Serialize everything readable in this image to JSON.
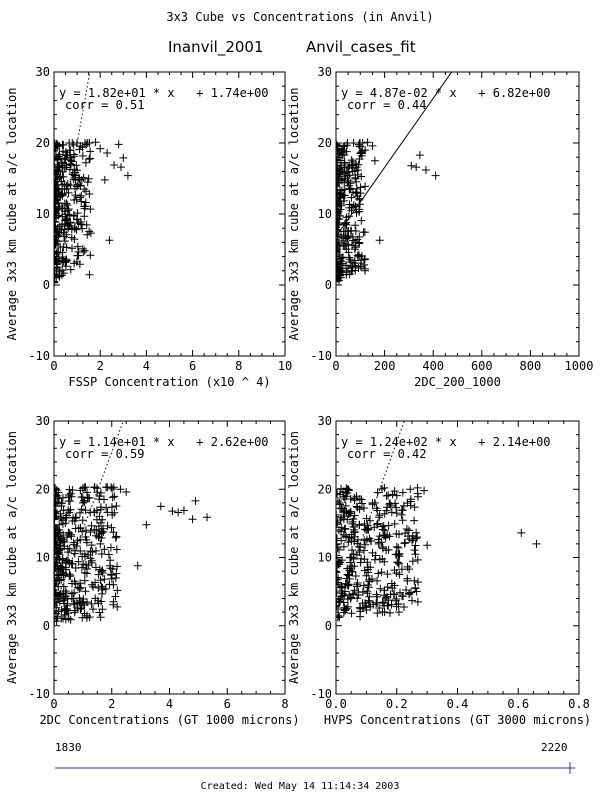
{
  "header": {
    "title": "3x3 Cube vs Concentrations (in Anvil)",
    "left_label": "Inanvil_2001",
    "right_label": "Anvil_cases_fit"
  },
  "footer": {
    "time_start": "1830",
    "time_end": "2220",
    "created": "Created: Wed May 14 11:14:34 2003"
  },
  "colors": {
    "foreground": "#000000",
    "timeline": "#5a2080",
    "background": "#ffffff"
  },
  "chart_data": [
    {
      "type": "scatter",
      "xlabel": "FSSP Concentration (x10 ^ 4)",
      "ylabel": "Average 3x3 km cube at a/c location",
      "xlim": [
        0,
        10
      ],
      "ylim": [
        -10,
        30
      ],
      "xticks": [
        "0",
        "2",
        "4",
        "6",
        "8",
        "10"
      ],
      "yticks": [
        "-10",
        "0",
        "10",
        "20",
        "30"
      ],
      "fit_text": "y = 1.82e+01 * x   + 1.74e+00",
      "corr_text": "corr = 0.51",
      "fit": {
        "slope": 18.2,
        "intercept": 1.74,
        "style": "dotted"
      },
      "cluster": {
        "xmin": 0,
        "xmax": 1.6,
        "x_skew": 2.2,
        "ymin": 0.3,
        "ymax": 20,
        "n": 330,
        "seed": 11
      },
      "points": [
        [
          2.3,
          18.6
        ],
        [
          2.8,
          19.8
        ],
        [
          3.0,
          17.9
        ],
        [
          2.9,
          16.6
        ],
        [
          3.2,
          15.4
        ],
        [
          2.6,
          16.9
        ],
        [
          2.4,
          6.3
        ],
        [
          1.8,
          20.1
        ],
        [
          2.0,
          19.2
        ],
        [
          2.2,
          14.8
        ]
      ]
    },
    {
      "type": "scatter",
      "xlabel": "2DC_200_1000",
      "ylabel": "Average 3x3 km cube at a/c location",
      "xlim": [
        0,
        1000
      ],
      "ylim": [
        -10,
        30
      ],
      "xticks": [
        "0",
        "200",
        "400",
        "600",
        "800",
        "1000"
      ],
      "yticks": [
        "-10",
        "0",
        "10",
        "20",
        "30"
      ],
      "fit_text": "y = 4.87e-02 * x   + 6.82e+00",
      "corr_text": "corr = 0.44",
      "fit": {
        "slope": 0.0487,
        "intercept": 6.82,
        "style": "solid"
      },
      "cluster": {
        "xmin": 0,
        "xmax": 120,
        "x_skew": 2.4,
        "ymin": 0.5,
        "ymax": 20,
        "n": 330,
        "seed": 23
      },
      "points": [
        [
          310,
          16.8
        ],
        [
          330,
          16.6
        ],
        [
          345,
          18.3
        ],
        [
          370,
          16.2
        ],
        [
          410,
          15.4
        ],
        [
          180,
          6.3
        ],
        [
          150,
          19.6
        ],
        [
          130,
          20.1
        ],
        [
          160,
          17.5
        ],
        [
          120,
          19.0
        ]
      ]
    },
    {
      "type": "scatter",
      "xlabel": "2DC Concentrations (GT 1000 microns)",
      "ylabel": "Average 3x3 km cube at a/c location",
      "xlim": [
        0,
        8
      ],
      "ylim": [
        -10,
        30
      ],
      "xticks": [
        "0",
        "2",
        "4",
        "6",
        "8"
      ],
      "yticks": [
        "-10",
        "0",
        "10",
        "20",
        "30"
      ],
      "fit_text": "y = 1.14e+01 * x   + 2.62e+00",
      "corr_text": "corr = 0.59",
      "fit": {
        "slope": 11.4,
        "intercept": 2.62,
        "style": "dotted"
      },
      "cluster": {
        "xmin": 0,
        "xmax": 2.2,
        "x_skew": 1.9,
        "ymin": 0.5,
        "ymax": 20.3,
        "n": 400,
        "seed": 37
      },
      "points": [
        [
          3.2,
          14.8
        ],
        [
          3.7,
          17.5
        ],
        [
          4.1,
          16.8
        ],
        [
          4.3,
          16.6
        ],
        [
          4.5,
          16.9
        ],
        [
          4.9,
          18.3
        ],
        [
          5.3,
          15.9
        ],
        [
          4.8,
          15.6
        ],
        [
          2.9,
          8.8
        ],
        [
          2.5,
          19.6
        ],
        [
          2.3,
          20.0
        ]
      ]
    },
    {
      "type": "scatter",
      "xlabel": "HVPS Concentrations (GT 3000 microns)",
      "ylabel": "Average 3x3 km cube at a/c location",
      "xlim": [
        0,
        0.8
      ],
      "ylim": [
        -10,
        30
      ],
      "xticks": [
        "0.0",
        "0.2",
        "0.4",
        "0.6",
        "0.8"
      ],
      "yticks": [
        "-10",
        "0",
        "10",
        "20",
        "30"
      ],
      "fit_text": "y = 1.24e+02 * x   + 2.14e+00",
      "corr_text": "corr = 0.42",
      "fit": {
        "slope": 124,
        "intercept": 2.14,
        "style": "dotted"
      },
      "cluster": {
        "xmin": 0,
        "xmax": 0.27,
        "x_skew": 1.5,
        "ymin": 0.8,
        "ymax": 20.2,
        "n": 380,
        "seed": 53
      },
      "points": [
        [
          0.3,
          11.8
        ],
        [
          0.61,
          13.6
        ],
        [
          0.66,
          12.0
        ],
        [
          0.29,
          19.8
        ],
        [
          0.27,
          18.9
        ],
        [
          0.22,
          19.5
        ],
        [
          0.2,
          16.5
        ],
        [
          0.16,
          2.0
        ],
        [
          0.08,
          2.5
        ]
      ]
    }
  ]
}
